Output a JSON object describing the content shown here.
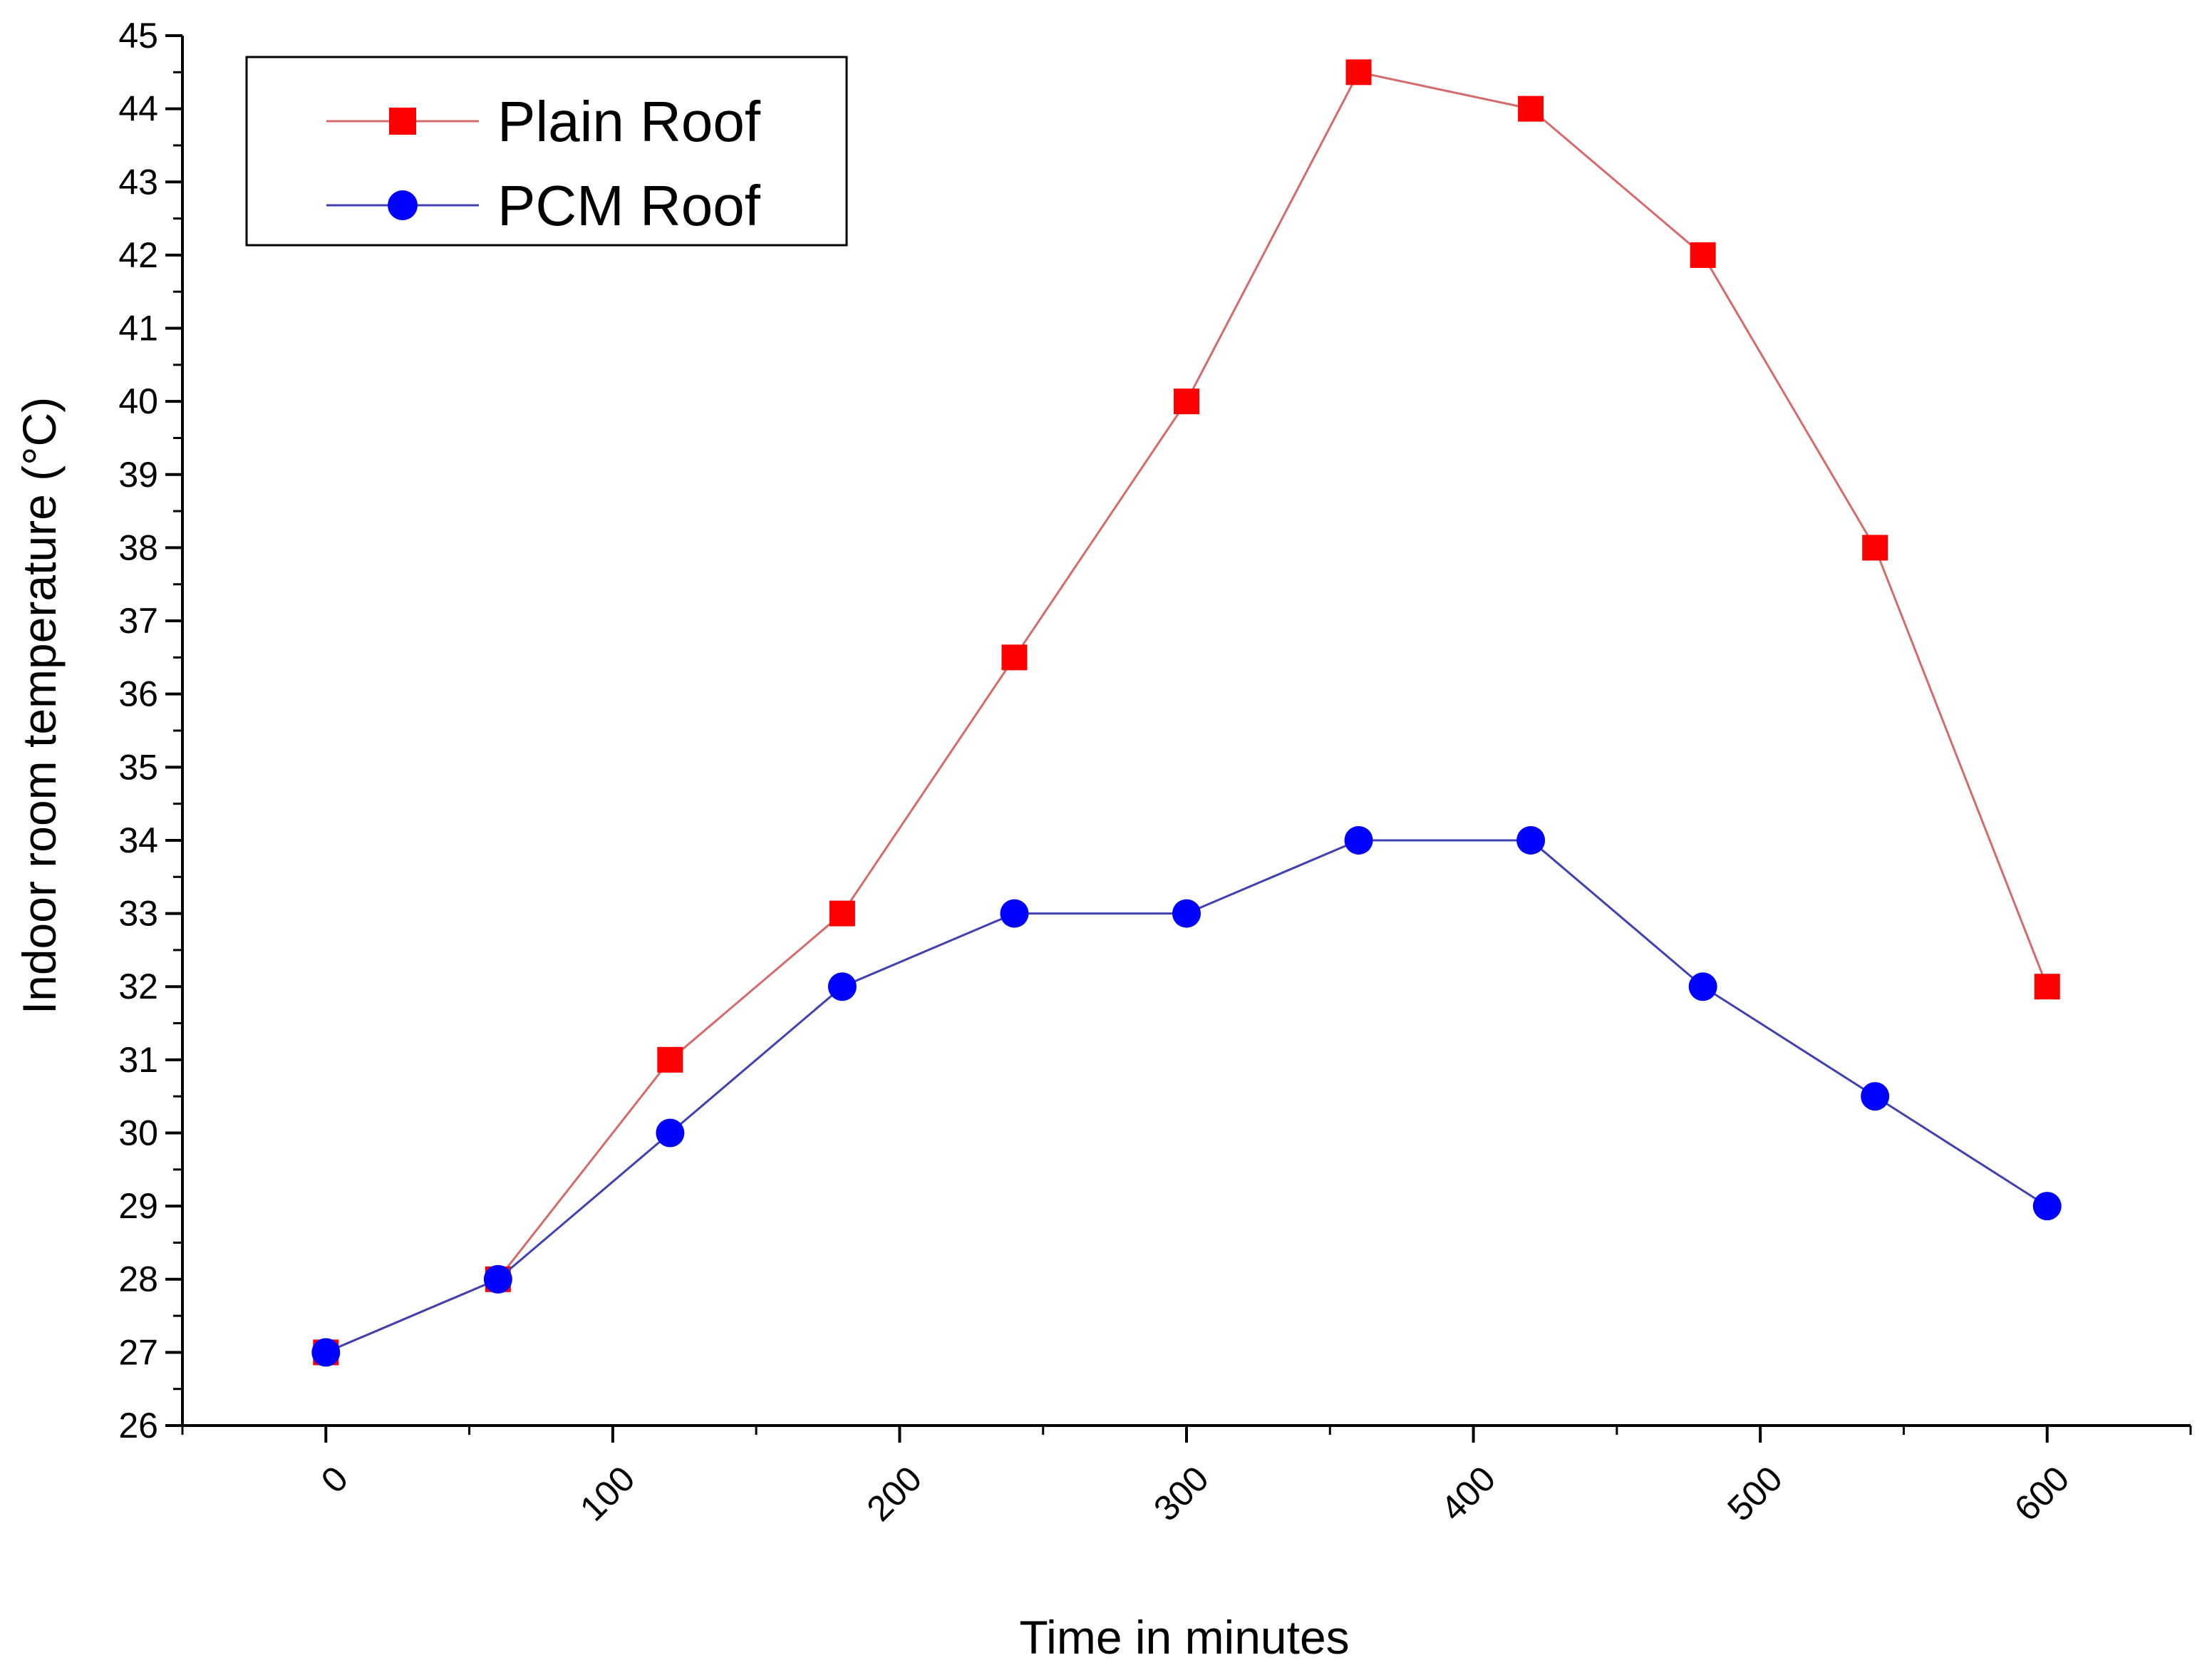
{
  "chart_data": {
    "type": "line",
    "title": "",
    "xlabel": "Time in minutes",
    "ylabel": "Indoor room temperature (°C)",
    "xlim": [
      -50,
      650
    ],
    "ylim": [
      26,
      45
    ],
    "xticks": [
      0,
      100,
      200,
      300,
      400,
      500,
      600
    ],
    "xtick_labels": [
      "0",
      "100",
      "200",
      "300",
      "400",
      "500",
      "600"
    ],
    "yticks": [
      26,
      27,
      28,
      29,
      30,
      31,
      32,
      33,
      34,
      35,
      36,
      37,
      38,
      39,
      40,
      41,
      42,
      43,
      44,
      45
    ],
    "ytick_labels": [
      "26",
      "27",
      "28",
      "29",
      "30",
      "31",
      "32",
      "33",
      "34",
      "35",
      "36",
      "37",
      "38",
      "39",
      "40",
      "41",
      "42",
      "43",
      "44",
      "45"
    ],
    "grid": false,
    "legend_position": "top-left",
    "x": [
      0,
      60,
      120,
      180,
      240,
      300,
      360,
      420,
      480,
      540,
      600
    ],
    "series": [
      {
        "name": "Plain Roof",
        "color": "#ff0000",
        "line_color": "#d46a6a",
        "marker": "square",
        "values": [
          27,
          28,
          31,
          33,
          36.5,
          40,
          44.5,
          44,
          42,
          38,
          32
        ]
      },
      {
        "name": "PCM Roof",
        "color": "#0000ff",
        "line_color": "#4040b0",
        "marker": "circle",
        "values": [
          27,
          28,
          30,
          32,
          33,
          33,
          34,
          34,
          32,
          30.5,
          29
        ]
      }
    ]
  }
}
